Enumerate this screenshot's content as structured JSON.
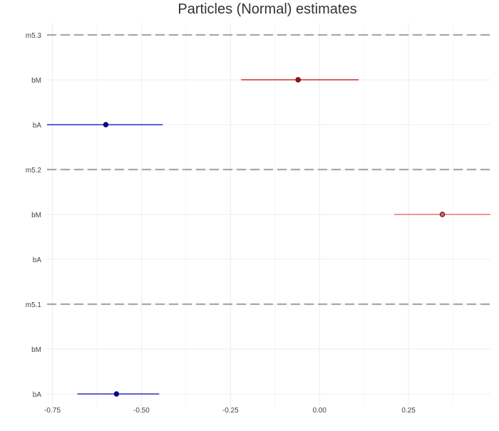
{
  "chart_data": {
    "type": "forest",
    "title": "Particles (Normal) estimates",
    "xlabel": "",
    "ylabel": "",
    "xlim": [
      -0.765,
      0.48
    ],
    "x_ticks": [
      {
        "value": -0.75,
        "label": "-0.75"
      },
      {
        "value": -0.5,
        "label": "-0.50"
      },
      {
        "value": -0.25,
        "label": "-0.25"
      },
      {
        "value": 0.0,
        "label": "0.00"
      },
      {
        "value": 0.25,
        "label": "0.25"
      }
    ],
    "grid": true,
    "legend": "none",
    "rows": [
      {
        "label": "m5.3",
        "kind": "separator"
      },
      {
        "label": "bM",
        "kind": "estimate",
        "estimate": -0.06,
        "lower": -0.22,
        "upper": 0.11,
        "color": "#cc0000"
      },
      {
        "label": "bA",
        "kind": "estimate",
        "estimate": -0.6,
        "lower": -0.77,
        "upper": -0.44,
        "color": "#0000bb"
      },
      {
        "label": "m5.2",
        "kind": "separator"
      },
      {
        "label": "bM",
        "kind": "estimate",
        "estimate": 0.345,
        "lower": 0.21,
        "upper": 0.48,
        "color": "#ee5555"
      },
      {
        "label": "bA",
        "kind": "empty"
      },
      {
        "label": "m5.1",
        "kind": "separator"
      },
      {
        "label": "bM",
        "kind": "empty"
      },
      {
        "label": "bA",
        "kind": "estimate",
        "estimate": -0.57,
        "lower": -0.68,
        "upper": -0.45,
        "color": "#0000bb"
      }
    ]
  }
}
